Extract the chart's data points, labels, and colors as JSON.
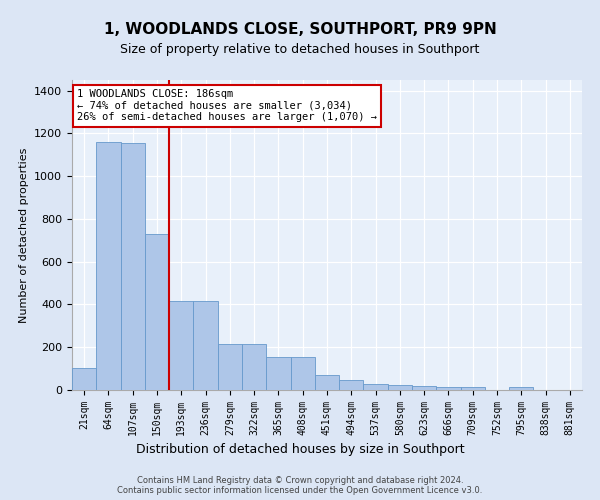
{
  "title": "1, WOODLANDS CLOSE, SOUTHPORT, PR9 9PN",
  "subtitle": "Size of property relative to detached houses in Southport",
  "xlabel": "Distribution of detached houses by size in Southport",
  "ylabel": "Number of detached properties",
  "categories": [
    "21sqm",
    "64sqm",
    "107sqm",
    "150sqm",
    "193sqm",
    "236sqm",
    "279sqm",
    "322sqm",
    "365sqm",
    "408sqm",
    "451sqm",
    "494sqm",
    "537sqm",
    "580sqm",
    "623sqm",
    "666sqm",
    "709sqm",
    "752sqm",
    "795sqm",
    "838sqm",
    "881sqm"
  ],
  "values": [
    105,
    1160,
    1155,
    730,
    415,
    415,
    215,
    215,
    155,
    155,
    68,
    47,
    30,
    22,
    17,
    15,
    13,
    0,
    13,
    0,
    0
  ],
  "bar_color": "#aec6e8",
  "bar_edge_color": "#6699cc",
  "vline_x_index": 3.5,
  "vline_color": "#cc0000",
  "annotation_text": "1 WOODLANDS CLOSE: 186sqm\n← 74% of detached houses are smaller (3,034)\n26% of semi-detached houses are larger (1,070) →",
  "annotation_box_color": "#ffffff",
  "annotation_box_edge": "#cc0000",
  "ylim": [
    0,
    1450
  ],
  "yticks": [
    0,
    200,
    400,
    600,
    800,
    1000,
    1200,
    1400
  ],
  "footnote": "Contains HM Land Registry data © Crown copyright and database right 2024.\nContains public sector information licensed under the Open Government Licence v3.0.",
  "bg_color": "#dce6f5",
  "plot_bg": "#e8f0fa"
}
